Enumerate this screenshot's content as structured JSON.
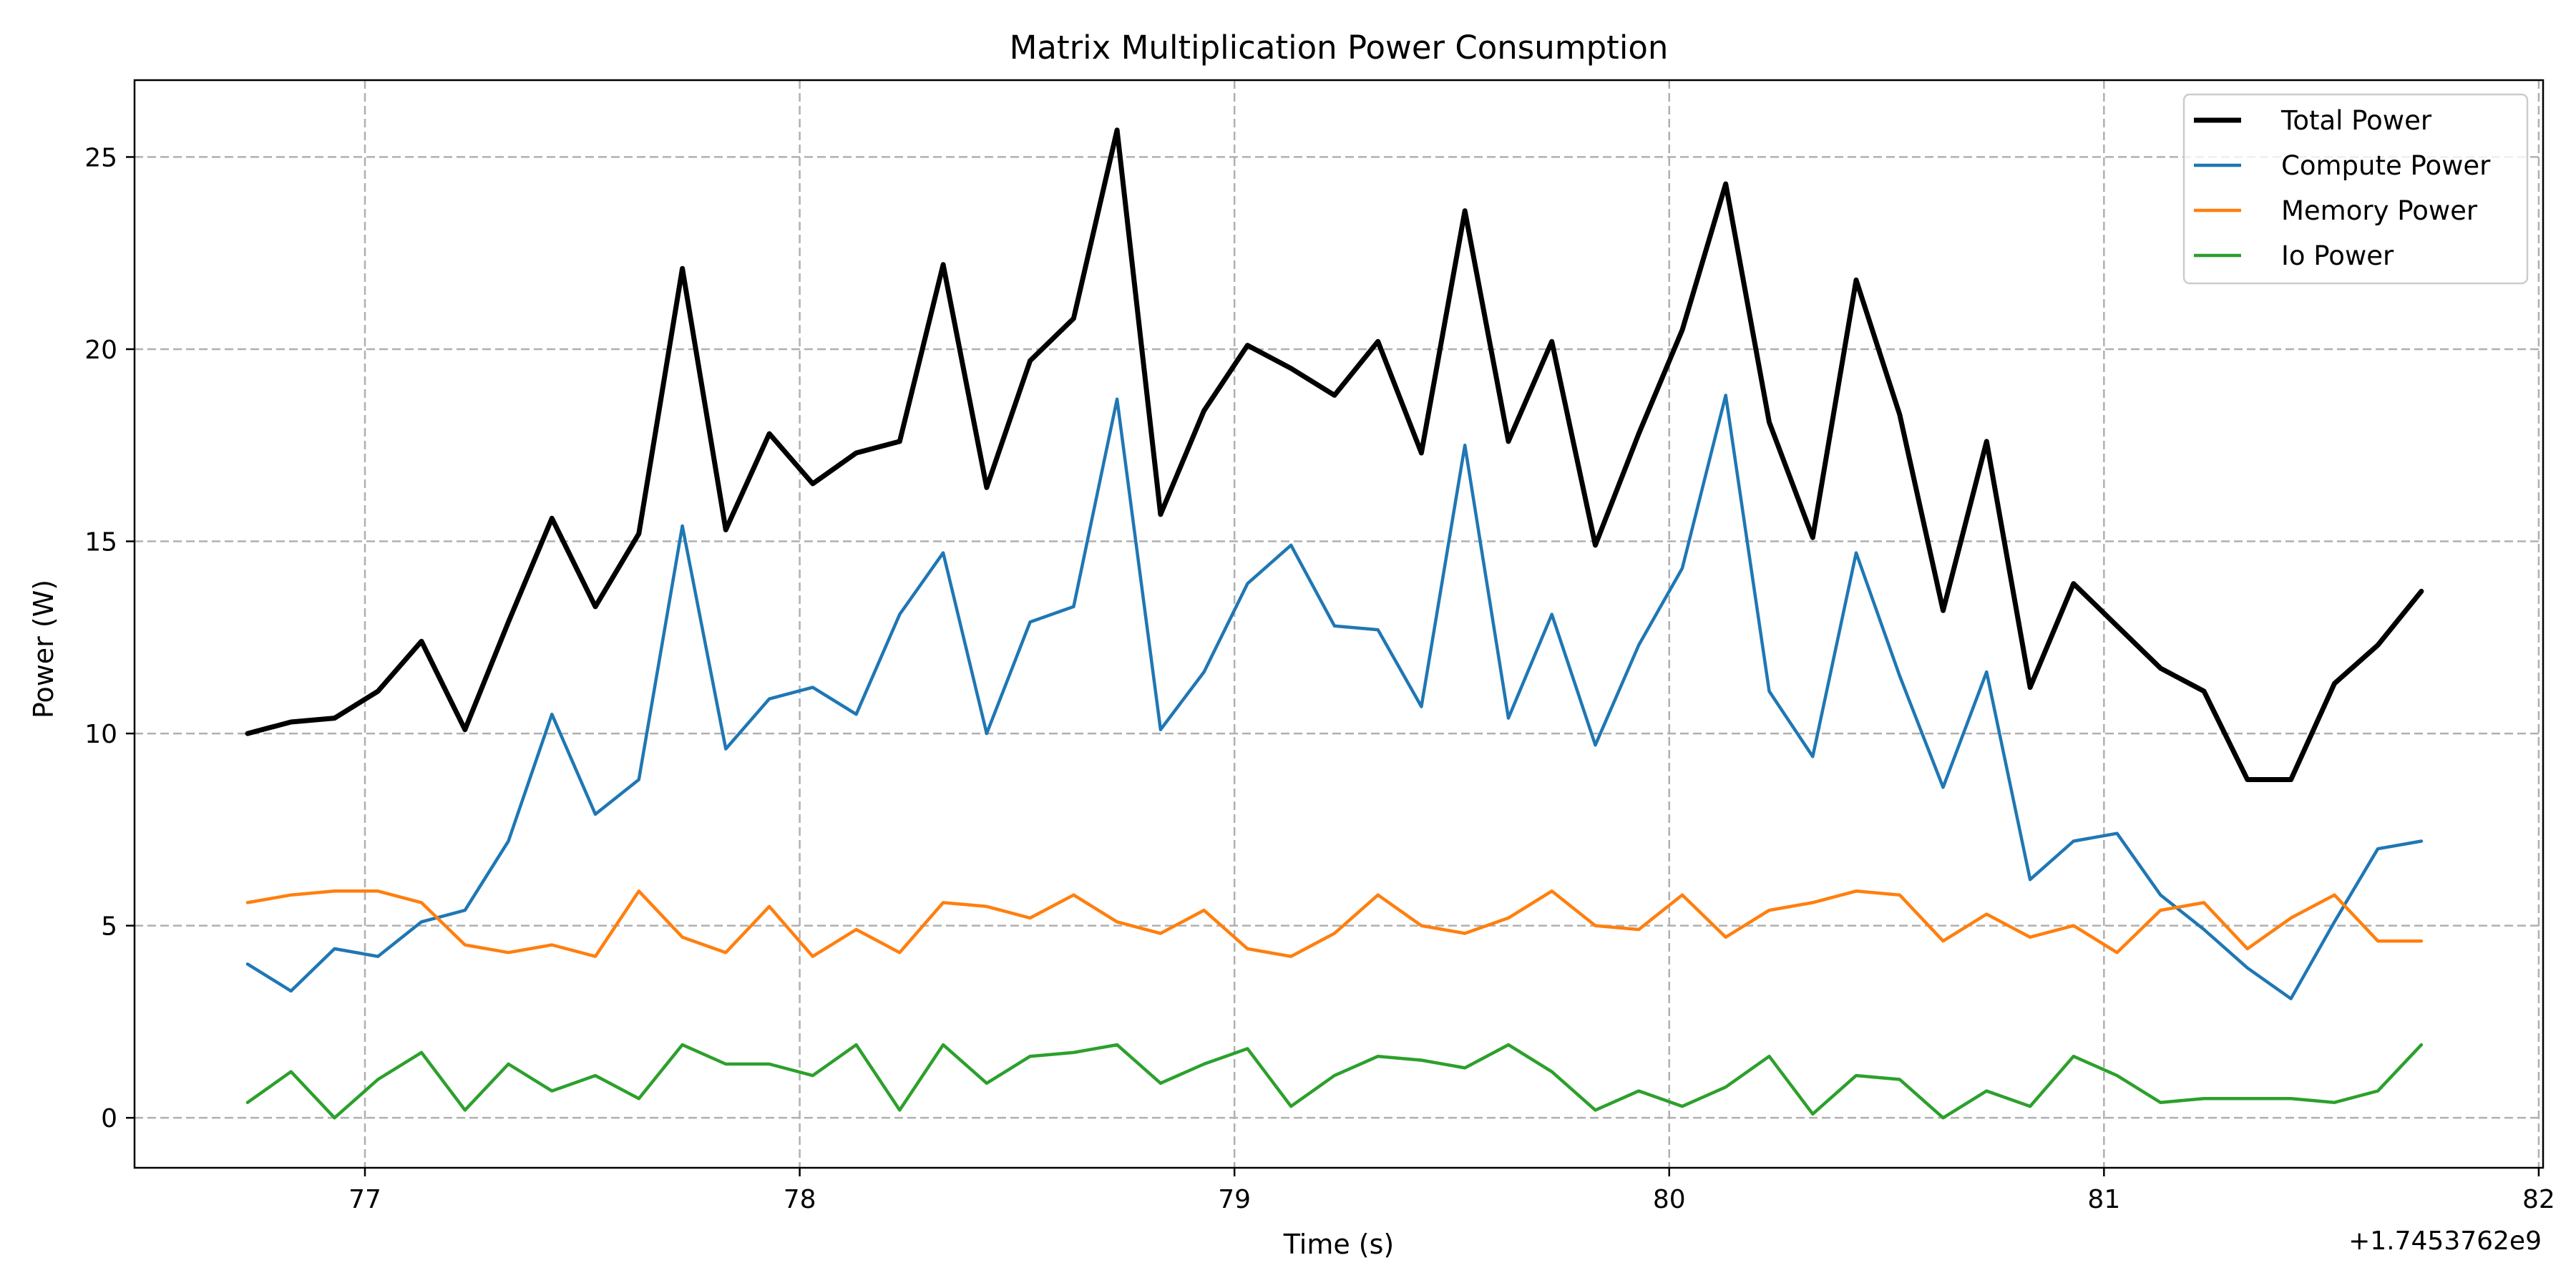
{
  "chart_data": {
    "type": "line",
    "title": "Matrix Multiplication Power Consumption",
    "xlabel": "Time (s)",
    "ylabel": "Power (W)",
    "x_offset_label": "+1.7453762e9",
    "xlim": [
      76.47,
      82.01
    ],
    "ylim": [
      -1.3,
      27.0
    ],
    "xticks": [
      77,
      78,
      79,
      80,
      81,
      82
    ],
    "xtick_labels": [
      "77",
      "78",
      "79",
      "80",
      "81",
      "82"
    ],
    "yticks": [
      0,
      5,
      10,
      15,
      20,
      25
    ],
    "ytick_labels": [
      "0",
      "5",
      "10",
      "15",
      "20",
      "25"
    ],
    "grid": true,
    "legend_position": "top-right",
    "x": [
      76.73,
      76.83,
      76.93,
      77.03,
      77.13,
      77.23,
      77.33,
      77.43,
      77.53,
      77.63,
      77.73,
      77.83,
      77.93,
      78.03,
      78.13,
      78.23,
      78.33,
      78.43,
      78.53,
      78.63,
      78.73,
      78.83,
      78.93,
      79.03,
      79.13,
      79.23,
      79.33,
      79.43,
      79.53,
      79.63,
      79.73,
      79.83,
      79.93,
      80.03,
      80.13,
      80.23,
      80.33,
      80.43,
      80.53,
      80.63,
      80.73,
      80.83,
      80.93,
      81.03,
      81.13,
      81.23,
      81.33,
      81.43,
      81.53,
      81.63,
      81.73
    ],
    "series": [
      {
        "name": "Total Power",
        "color": "#000000",
        "values": [
          10.0,
          10.3,
          10.4,
          11.1,
          12.4,
          10.1,
          12.9,
          15.6,
          13.3,
          15.2,
          22.1,
          15.3,
          17.8,
          16.5,
          17.3,
          17.6,
          22.2,
          16.4,
          19.7,
          20.8,
          25.7,
          15.7,
          18.4,
          20.1,
          19.5,
          18.8,
          20.2,
          17.3,
          23.6,
          17.6,
          20.2,
          14.9,
          17.8,
          20.5,
          24.3,
          18.1,
          15.1,
          21.8,
          18.3,
          13.2,
          17.6,
          11.2,
          13.9,
          12.8,
          11.7,
          11.1,
          8.8,
          8.8,
          11.3,
          12.3,
          13.7
        ]
      },
      {
        "name": "Compute Power",
        "color": "#1f77b4",
        "values": [
          4.0,
          3.3,
          4.4,
          4.2,
          5.1,
          5.4,
          7.2,
          10.5,
          7.9,
          8.8,
          15.4,
          9.6,
          10.9,
          11.2,
          10.5,
          13.1,
          14.7,
          10.0,
          12.9,
          13.3,
          18.7,
          10.1,
          11.6,
          13.9,
          14.9,
          12.8,
          12.7,
          10.7,
          17.5,
          10.4,
          13.1,
          9.7,
          12.3,
          14.3,
          18.8,
          11.1,
          9.4,
          14.7,
          11.5,
          8.6,
          11.6,
          6.2,
          7.2,
          7.4,
          5.8,
          4.9,
          3.9,
          3.1,
          5.1,
          7.0,
          7.2
        ]
      },
      {
        "name": "Memory Power",
        "color": "#ff7f0e",
        "values": [
          5.6,
          5.8,
          5.9,
          5.9,
          5.6,
          4.5,
          4.3,
          4.5,
          4.2,
          5.9,
          4.7,
          4.3,
          5.5,
          4.2,
          4.9,
          4.3,
          5.6,
          5.5,
          5.2,
          5.8,
          5.1,
          4.8,
          5.4,
          4.4,
          4.2,
          4.8,
          5.8,
          5.0,
          4.8,
          5.2,
          5.9,
          5.0,
          4.9,
          5.8,
          4.7,
          5.4,
          5.6,
          5.9,
          5.8,
          4.6,
          5.3,
          4.7,
          5.0,
          4.3,
          5.4,
          5.6,
          4.4,
          5.2,
          5.8,
          4.6,
          4.6
        ]
      },
      {
        "name": "Io Power",
        "color": "#2ca02c",
        "values": [
          0.4,
          1.2,
          0.0,
          1.0,
          1.7,
          0.2,
          1.4,
          0.7,
          1.1,
          0.5,
          1.9,
          1.4,
          1.4,
          1.1,
          1.9,
          0.2,
          1.9,
          0.9,
          1.6,
          1.7,
          1.9,
          0.9,
          1.4,
          1.8,
          0.3,
          1.1,
          1.6,
          1.5,
          1.3,
          1.9,
          1.2,
          0.2,
          0.7,
          0.3,
          0.8,
          1.6,
          0.1,
          1.1,
          1.0,
          0.0,
          0.7,
          0.3,
          1.6,
          1.1,
          0.4,
          0.5,
          0.5,
          0.5,
          0.4,
          0.7,
          1.9
        ]
      }
    ]
  }
}
